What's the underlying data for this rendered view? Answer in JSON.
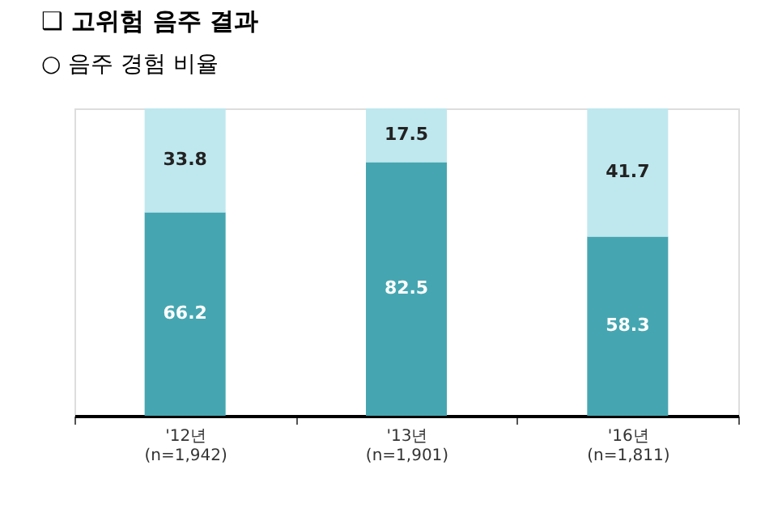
{
  "chart_data": {
    "type": "bar",
    "title": "❑ 고위험 음주 결과",
    "subtitle": "○ 음주 경험 비율",
    "categories": [
      "'12년\n(n=1,942)",
      "'13년\n(n=1,901)",
      "'16년\n(n=1,811)"
    ],
    "stacked": true,
    "data_labels": true,
    "legend": false,
    "grid": false,
    "series": [
      {
        "color": "#45a6b1",
        "values": [
          66.2,
          82.5,
          58.3
        ]
      },
      {
        "color": "#bfe7ee",
        "values": [
          33.8,
          17.5,
          41.7
        ]
      }
    ]
  }
}
